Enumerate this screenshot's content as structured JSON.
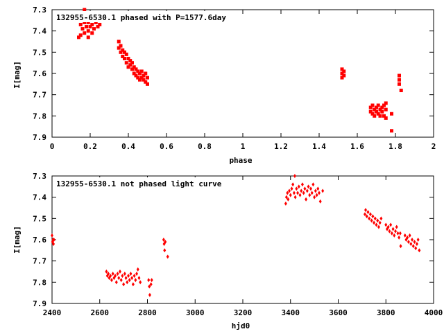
{
  "colors": {
    "points": "#ff0000",
    "axes": "#000000",
    "background": "#ffffff"
  },
  "chart_data": [
    {
      "type": "scatter",
      "title": "132955-6530.1 phased with P=1577.6day",
      "xlabel": "phase",
      "ylabel": "I[mag]",
      "xlim": [
        0,
        2
      ],
      "ylim": [
        7.9,
        7.3
      ],
      "y_inverted": true,
      "grid": false,
      "marker": "filled square",
      "xticks": [
        0,
        0.2,
        0.4,
        0.6,
        0.8,
        1,
        1.2,
        1.4,
        1.6,
        1.8,
        2
      ],
      "xtick_labels": [
        "0",
        "0.2",
        "0.4",
        "0.6",
        "0.8",
        "1",
        "1.2",
        "1.4",
        "1.6",
        "1.8",
        "2"
      ],
      "yticks": [
        7.3,
        7.4,
        7.5,
        7.6,
        7.7,
        7.8,
        7.9
      ],
      "ytick_labels": [
        "7.3",
        "7.4",
        "7.5",
        "7.6",
        "7.7",
        "7.8",
        "7.9"
      ],
      "points": [
        [
          0.14,
          7.43
        ],
        [
          0.15,
          7.37
        ],
        [
          0.15,
          7.42
        ],
        [
          0.16,
          7.35
        ],
        [
          0.16,
          7.39
        ],
        [
          0.16,
          7.33
        ],
        [
          0.17,
          7.36
        ],
        [
          0.17,
          7.3
        ],
        [
          0.17,
          7.41
        ],
        [
          0.18,
          7.34
        ],
        [
          0.18,
          7.38
        ],
        [
          0.18,
          7.32
        ],
        [
          0.19,
          7.36
        ],
        [
          0.19,
          7.4
        ],
        [
          0.19,
          7.43
        ],
        [
          0.2,
          7.35
        ],
        [
          0.2,
          7.38
        ],
        [
          0.2,
          7.33
        ],
        [
          0.21,
          7.37
        ],
        [
          0.21,
          7.41
        ],
        [
          0.22,
          7.35
        ],
        [
          0.22,
          7.39
        ],
        [
          0.23,
          7.36
        ],
        [
          0.23,
          7.34
        ],
        [
          0.24,
          7.38
        ],
        [
          0.25,
          7.37
        ],
        [
          0.35,
          7.45
        ],
        [
          0.35,
          7.48
        ],
        [
          0.36,
          7.47
        ],
        [
          0.36,
          7.5
        ],
        [
          0.37,
          7.49
        ],
        [
          0.37,
          7.52
        ],
        [
          0.38,
          7.5
        ],
        [
          0.38,
          7.53
        ],
        [
          0.39,
          7.51
        ],
        [
          0.39,
          7.55
        ],
        [
          0.4,
          7.53
        ],
        [
          0.4,
          7.57
        ],
        [
          0.41,
          7.54
        ],
        [
          0.41,
          7.56
        ],
        [
          0.42,
          7.55
        ],
        [
          0.42,
          7.58
        ],
        [
          0.43,
          7.57
        ],
        [
          0.43,
          7.6
        ],
        [
          0.44,
          7.58
        ],
        [
          0.44,
          7.61
        ],
        [
          0.45,
          7.59
        ],
        [
          0.45,
          7.62
        ],
        [
          0.46,
          7.6
        ],
        [
          0.46,
          7.63
        ],
        [
          0.47,
          7.59
        ],
        [
          0.47,
          7.62
        ],
        [
          0.48,
          7.61
        ],
        [
          0.48,
          7.63
        ],
        [
          0.49,
          7.6
        ],
        [
          0.49,
          7.64
        ],
        [
          0.5,
          7.62
        ],
        [
          0.5,
          7.65
        ],
        [
          1.52,
          7.58
        ],
        [
          1.52,
          7.6
        ],
        [
          1.52,
          7.62
        ],
        [
          1.53,
          7.59
        ],
        [
          1.53,
          7.61
        ],
        [
          1.67,
          7.76
        ],
        [
          1.67,
          7.78
        ],
        [
          1.68,
          7.75
        ],
        [
          1.68,
          7.79
        ],
        [
          1.69,
          7.77
        ],
        [
          1.69,
          7.8
        ],
        [
          1.7,
          7.76
        ],
        [
          1.7,
          7.78
        ],
        [
          1.71,
          7.75
        ],
        [
          1.71,
          7.79
        ],
        [
          1.72,
          7.77
        ],
        [
          1.72,
          7.8
        ],
        [
          1.73,
          7.76
        ],
        [
          1.73,
          7.78
        ],
        [
          1.74,
          7.75
        ],
        [
          1.74,
          7.8
        ],
        [
          1.75,
          7.77
        ],
        [
          1.75,
          7.81
        ],
        [
          1.75,
          7.74
        ],
        [
          1.78,
          7.79
        ],
        [
          1.78,
          7.87
        ],
        [
          1.82,
          7.61
        ],
        [
          1.82,
          7.63
        ],
        [
          1.82,
          7.65
        ],
        [
          1.83,
          7.68
        ]
      ]
    },
    {
      "type": "scatter",
      "title": "132955-6530.1 not phased light curve",
      "xlabel": "hjd0",
      "ylabel": "I[mag]",
      "xlim": [
        2400,
        4000
      ],
      "ylim": [
        7.9,
        7.3
      ],
      "y_inverted": true,
      "grid": false,
      "marker": "small diamond",
      "xticks": [
        2400,
        2600,
        2800,
        3000,
        3200,
        3400,
        3600,
        3800,
        4000
      ],
      "xtick_labels": [
        "2400",
        "2600",
        "2800",
        "3000",
        "3200",
        "3400",
        "3600",
        "3800",
        "4000"
      ],
      "yticks": [
        7.3,
        7.4,
        7.5,
        7.6,
        7.7,
        7.8,
        7.9
      ],
      "ytick_labels": [
        "7.3",
        "7.4",
        "7.5",
        "7.6",
        "7.7",
        "7.8",
        "7.9"
      ],
      "points": [
        [
          2400,
          7.58
        ],
        [
          2402,
          7.61
        ],
        [
          2404,
          7.6
        ],
        [
          2406,
          7.62
        ],
        [
          2408,
          7.6
        ],
        [
          2628,
          7.75
        ],
        [
          2632,
          7.77
        ],
        [
          2636,
          7.76
        ],
        [
          2640,
          7.78
        ],
        [
          2645,
          7.77
        ],
        [
          2650,
          7.79
        ],
        [
          2655,
          7.76
        ],
        [
          2660,
          7.78
        ],
        [
          2665,
          7.77
        ],
        [
          2670,
          7.8
        ],
        [
          2675,
          7.76
        ],
        [
          2680,
          7.78
        ],
        [
          2685,
          7.75
        ],
        [
          2690,
          7.79
        ],
        [
          2695,
          7.77
        ],
        [
          2700,
          7.81
        ],
        [
          2705,
          7.76
        ],
        [
          2710,
          7.78
        ],
        [
          2715,
          7.8
        ],
        [
          2720,
          7.77
        ],
        [
          2725,
          7.79
        ],
        [
          2730,
          7.76
        ],
        [
          2735,
          7.78
        ],
        [
          2740,
          7.81
        ],
        [
          2745,
          7.77
        ],
        [
          2750,
          7.79
        ],
        [
          2755,
          7.76
        ],
        [
          2760,
          7.74
        ],
        [
          2765,
          7.78
        ],
        [
          2770,
          7.8
        ],
        [
          2805,
          7.79
        ],
        [
          2808,
          7.82
        ],
        [
          2810,
          7.86
        ],
        [
          2815,
          7.81
        ],
        [
          2818,
          7.79
        ],
        [
          2868,
          7.6
        ],
        [
          2870,
          7.62
        ],
        [
          2872,
          7.65
        ],
        [
          2875,
          7.61
        ],
        [
          2885,
          7.68
        ],
        [
          3380,
          7.43
        ],
        [
          3383,
          7.4
        ],
        [
          3387,
          7.38
        ],
        [
          3390,
          7.41
        ],
        [
          3395,
          7.37
        ],
        [
          3400,
          7.39
        ],
        [
          3405,
          7.36
        ],
        [
          3410,
          7.34
        ],
        [
          3415,
          7.38
        ],
        [
          3418,
          7.3
        ],
        [
          3420,
          7.4
        ],
        [
          3425,
          7.36
        ],
        [
          3430,
          7.38
        ],
        [
          3435,
          7.35
        ],
        [
          3440,
          7.39
        ],
        [
          3445,
          7.37
        ],
        [
          3450,
          7.34
        ],
        [
          3455,
          7.38
        ],
        [
          3460,
          7.36
        ],
        [
          3465,
          7.41
        ],
        [
          3470,
          7.37
        ],
        [
          3475,
          7.35
        ],
        [
          3480,
          7.39
        ],
        [
          3485,
          7.36
        ],
        [
          3490,
          7.38
        ],
        [
          3495,
          7.34
        ],
        [
          3500,
          7.4
        ],
        [
          3505,
          7.37
        ],
        [
          3510,
          7.39
        ],
        [
          3515,
          7.36
        ],
        [
          3520,
          7.38
        ],
        [
          3525,
          7.42
        ],
        [
          3535,
          7.37
        ],
        [
          3712,
          7.48
        ],
        [
          3715,
          7.46
        ],
        [
          3720,
          7.49
        ],
        [
          3725,
          7.47
        ],
        [
          3730,
          7.5
        ],
        [
          3735,
          7.48
        ],
        [
          3740,
          7.51
        ],
        [
          3745,
          7.49
        ],
        [
          3750,
          7.52
        ],
        [
          3755,
          7.5
        ],
        [
          3760,
          7.53
        ],
        [
          3765,
          7.51
        ],
        [
          3770,
          7.54
        ],
        [
          3775,
          7.52
        ],
        [
          3780,
          7.5
        ],
        [
          3800,
          7.53
        ],
        [
          3805,
          7.55
        ],
        [
          3810,
          7.54
        ],
        [
          3815,
          7.56
        ],
        [
          3820,
          7.53
        ],
        [
          3825,
          7.57
        ],
        [
          3830,
          7.55
        ],
        [
          3835,
          7.58
        ],
        [
          3840,
          7.56
        ],
        [
          3845,
          7.54
        ],
        [
          3850,
          7.57
        ],
        [
          3855,
          7.59
        ],
        [
          3860,
          7.57
        ],
        [
          3862,
          7.63
        ],
        [
          3880,
          7.58
        ],
        [
          3885,
          7.6
        ],
        [
          3890,
          7.59
        ],
        [
          3895,
          7.61
        ],
        [
          3900,
          7.58
        ],
        [
          3905,
          7.62
        ],
        [
          3910,
          7.6
        ],
        [
          3915,
          7.63
        ],
        [
          3920,
          7.61
        ],
        [
          3925,
          7.64
        ],
        [
          3930,
          7.62
        ],
        [
          3935,
          7.6
        ],
        [
          3940,
          7.65
        ]
      ]
    }
  ]
}
